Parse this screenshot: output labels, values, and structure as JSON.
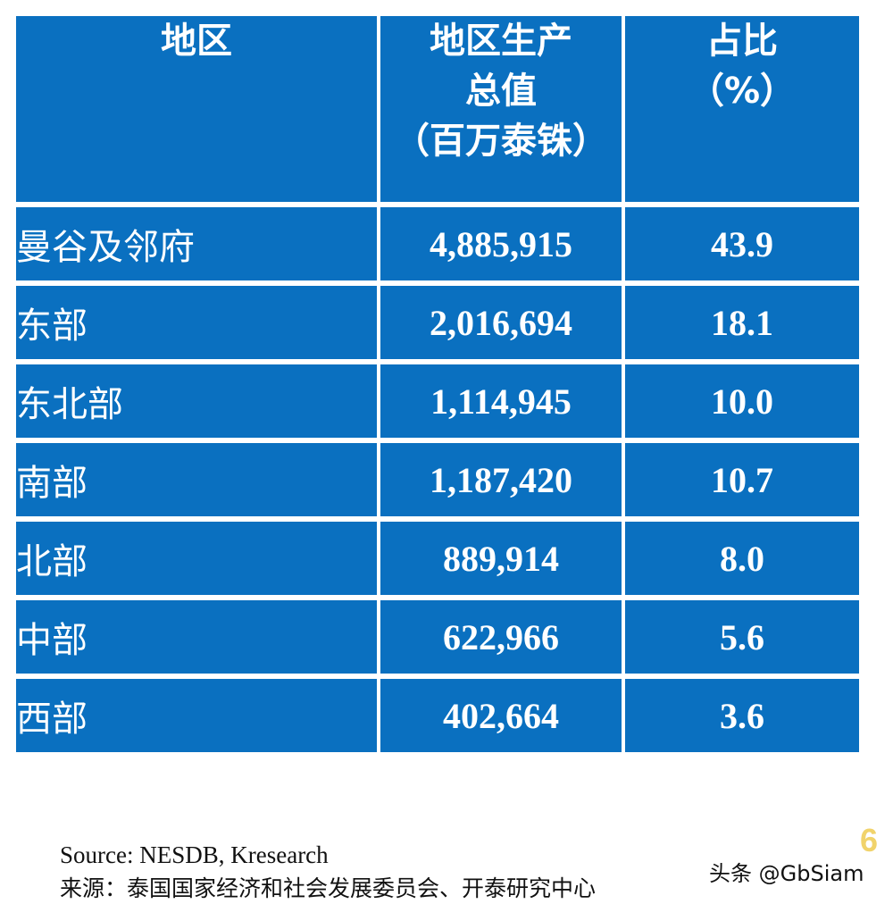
{
  "table": {
    "headers": [
      [
        "地区"
      ],
      [
        "地区生产",
        "总值",
        "（百万泰铢）"
      ],
      [
        "占比",
        "（%）"
      ]
    ],
    "rows": [
      {
        "region": "曼谷及邻府",
        "gdp": "4,885,915",
        "share": "43.9"
      },
      {
        "region": "东部",
        "gdp": "2,016,694",
        "share": "18.1"
      },
      {
        "region": "东北部",
        "gdp": "1,114,945",
        "share": "10.0"
      },
      {
        "region": "南部",
        "gdp": "1,187,420",
        "share": "10.7"
      },
      {
        "region": "北部",
        "gdp": "889,914",
        "share": "8.0"
      },
      {
        "region": "中部",
        "gdp": "622,966",
        "share": "5.6"
      },
      {
        "region": "西部",
        "gdp": "402,664",
        "share": "3.6"
      }
    ]
  },
  "footer": {
    "source_en": "Source: NESDB, Kresearch",
    "source_cn": "来源：泰国国家经济和社会发展委员会、开泰研究中心",
    "page_number": "6",
    "watermark": "头条 @GbSiam"
  },
  "colors": {
    "table_fill": "#0a70c0",
    "text_on_table": "#ffffff",
    "page_number": "#f1d36b"
  }
}
